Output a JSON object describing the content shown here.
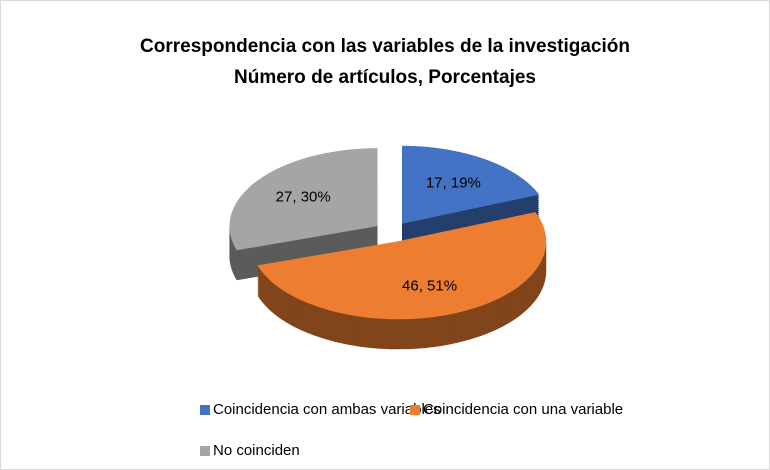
{
  "chart_data": {
    "type": "pie3d",
    "title": "Correspondencia con las variables de la investigación",
    "subtitle": "Número de artículos, Porcentajes",
    "categories": [
      "Coincidencia con ambas variables",
      "Coincidencia con una variable",
      "No coinciden"
    ],
    "values": [
      17,
      46,
      27
    ],
    "value_labels": [
      "17, 19%",
      "46, 51%",
      "27, 30%"
    ],
    "colors": [
      "#4472c4",
      "#ed7d31",
      "#a5a5a5"
    ],
    "legend": "bottom"
  }
}
